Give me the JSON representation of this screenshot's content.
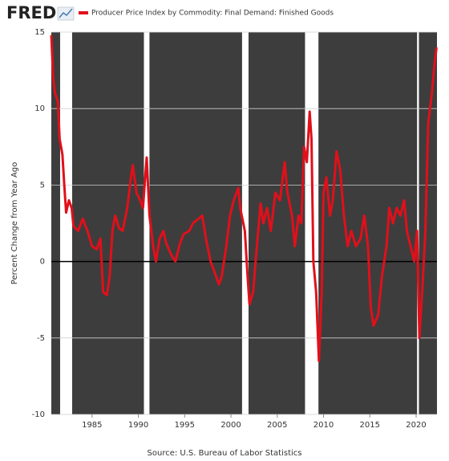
{
  "logo": "FRED",
  "chart_data": {
    "type": "line",
    "x_axis": "date",
    "y_label": "Percent Change from Year Ago",
    "source": "Source: U.S. Bureau of Labor Statistics",
    "x": [
      1980.6,
      1980.8,
      1981.0,
      1981.3,
      1981.5,
      1981.8,
      1982.0,
      1982.2,
      1982.5,
      1982.8,
      1983.0,
      1983.5,
      1984.0,
      1984.5,
      1985.0,
      1985.5,
      1985.9,
      1986.2,
      1986.6,
      1986.9,
      1987.2,
      1987.5,
      1987.9,
      1988.3,
      1988.8,
      1989.2,
      1989.4,
      1989.8,
      1990.2,
      1990.5,
      1990.8,
      1990.9,
      1991.2,
      1991.6,
      1991.9,
      1992.3,
      1992.7,
      1993.0,
      1993.5,
      1994.0,
      1994.5,
      1994.9,
      1995.5,
      1995.9,
      1996.5,
      1996.9,
      1997.3,
      1997.8,
      1998.3,
      1998.7,
      1999.0,
      1999.5,
      1999.9,
      2000.3,
      2000.8,
      2001.0,
      2001.5,
      2001.8,
      2002.0,
      2002.4,
      2002.8,
      2003.2,
      2003.5,
      2003.9,
      2004.3,
      2004.8,
      2005.3,
      2005.8,
      2006.1,
      2006.6,
      2006.9,
      2007.3,
      2007.6,
      2007.9,
      2008.2,
      2008.5,
      2008.7,
      2008.9,
      2009.2,
      2009.5,
      2009.8,
      2010.0,
      2010.3,
      2010.7,
      2011.0,
      2011.4,
      2011.8,
      2012.2,
      2012.6,
      2013.0,
      2013.5,
      2014.0,
      2014.4,
      2014.8,
      2015.1,
      2015.4,
      2015.9,
      2016.3,
      2016.8,
      2017.1,
      2017.5,
      2017.9,
      2018.3,
      2018.7,
      2019.0,
      2019.4,
      2019.8,
      2020.1,
      2020.35,
      2020.7,
      2021.0,
      2021.3,
      2021.7,
      2022.0,
      2022.2
    ],
    "series": [
      {
        "name": "Producer Price Index by Commodity: Final Demand: Finished Goods",
        "color": "#e0101b",
        "values": [
          14.8,
          12,
          11,
          10.5,
          8,
          7,
          5,
          3.2,
          4,
          3.5,
          2.3,
          2,
          2.8,
          2,
          1,
          0.8,
          1.5,
          -2,
          -2.2,
          -1,
          2,
          3,
          2.2,
          2,
          3.5,
          5.5,
          6.3,
          4.5,
          4,
          3.5,
          6,
          6.8,
          3,
          1,
          0,
          1.5,
          2,
          1.2,
          0.5,
          0,
          1.2,
          1.8,
          2,
          2.5,
          2.8,
          3,
          1.5,
          0,
          -0.8,
          -1.5,
          -1,
          1,
          3,
          4,
          4.8,
          3.5,
          2,
          -1,
          -2.8,
          -2,
          1,
          3.8,
          2.5,
          3.5,
          2,
          4.5,
          4,
          6.5,
          4.5,
          3,
          1,
          3,
          2.5,
          7.5,
          6.5,
          9.8,
          8,
          0,
          -2,
          -6.5,
          -2,
          4.5,
          5.5,
          3,
          4,
          7.2,
          6,
          3,
          1,
          2,
          1,
          1.5,
          3,
          1,
          -3,
          -4.2,
          -3.5,
          -1,
          1,
          3.5,
          2.5,
          3.5,
          3,
          4,
          2,
          1,
          0,
          2,
          -5,
          -1.5,
          2,
          9,
          11,
          13,
          14
        ]
      }
    ],
    "recessions": [
      [
        1981.55,
        1982.85
      ],
      [
        1990.6,
        1991.2
      ],
      [
        2001.2,
        2001.9
      ],
      [
        2008.0,
        2009.45
      ],
      [
        2020.1,
        2020.3
      ]
    ],
    "xlim": [
      1980.6,
      2022.25
    ],
    "xticks": [
      1985,
      1990,
      1995,
      2000,
      2005,
      2010,
      2015,
      2020
    ],
    "ylim": [
      -10,
      15
    ],
    "yticks": [
      -10,
      -5,
      0,
      5,
      10,
      15
    ],
    "grid": true
  }
}
